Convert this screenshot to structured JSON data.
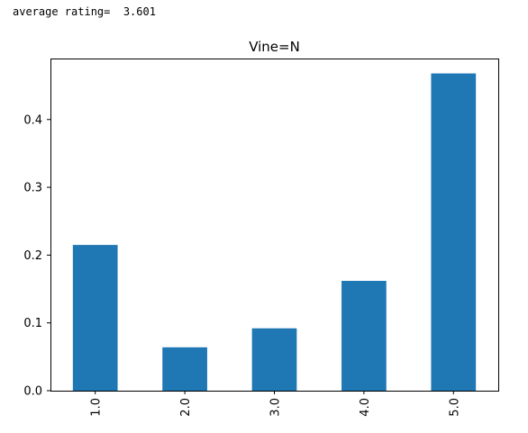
{
  "output": {
    "text": "average rating=  3.601"
  },
  "chart_data": {
    "type": "bar",
    "title": "Vine=N",
    "xlabel": "",
    "ylabel": "",
    "categories": [
      "1.0",
      "2.0",
      "3.0",
      "4.0",
      "5.0"
    ],
    "values": [
      0.215,
      0.064,
      0.092,
      0.162,
      0.468
    ],
    "ylim": [
      0.0,
      0.49
    ],
    "yticks": [
      "0.0",
      "0.1",
      "0.2",
      "0.3",
      "0.4"
    ],
    "ytick_values": [
      0.0,
      0.1,
      0.2,
      0.3,
      0.4
    ],
    "grid": false,
    "bar_color": "#1f77b4"
  }
}
